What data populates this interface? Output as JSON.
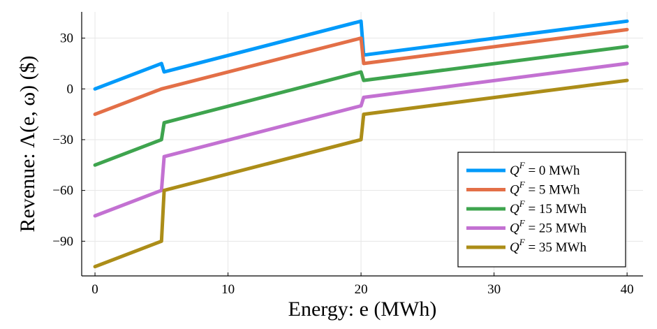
{
  "chart_data": {
    "type": "line",
    "title": "",
    "xlabel": "Energy: e (MWh)",
    "ylabel": "Revenue: Λ(e, ω)  ($)",
    "xlim": [
      -1.0,
      41.2
    ],
    "ylim": [
      -110.5,
      45.5
    ],
    "xticks": [
      0,
      10,
      20,
      30,
      40
    ],
    "yticks": [
      30,
      0,
      -30,
      -60,
      -90
    ],
    "xtick_labels": [
      "0",
      "10",
      "20",
      "30",
      "40"
    ],
    "ytick_labels": [
      "30",
      "0",
      "−30",
      "−60",
      "−90"
    ],
    "grid": true,
    "legend_position": "bottom-right",
    "series": [
      {
        "name": "Q^F = 0 MWh",
        "legend_prefix": "Q",
        "legend_sup": "F",
        "legend_suffix": " =  0  MWh",
        "color": "#009AFA",
        "points": [
          [
            0,
            0
          ],
          [
            5,
            15
          ],
          [
            5.2,
            10
          ],
          [
            20,
            40
          ],
          [
            20.2,
            20
          ],
          [
            40,
            40
          ]
        ]
      },
      {
        "name": "Q^F = 5 MWh",
        "legend_prefix": "Q",
        "legend_sup": "F",
        "legend_suffix": " =  5  MWh",
        "color": "#E36F47",
        "points": [
          [
            0,
            -15
          ],
          [
            5,
            0
          ],
          [
            20,
            30
          ],
          [
            20.2,
            15
          ],
          [
            40,
            35
          ]
        ]
      },
      {
        "name": "Q^F = 15 MWh",
        "legend_prefix": "Q",
        "legend_sup": "F",
        "legend_suffix": " =  15  MWh",
        "color": "#3EA44E",
        "points": [
          [
            0,
            -45
          ],
          [
            5,
            -30
          ],
          [
            5.2,
            -20
          ],
          [
            20,
            10
          ],
          [
            20.2,
            5
          ],
          [
            40,
            25
          ]
        ]
      },
      {
        "name": "Q^F = 25 MWh",
        "legend_prefix": "Q",
        "legend_sup": "F",
        "legend_suffix": " =  25  MWh",
        "color": "#C371D2",
        "points": [
          [
            0,
            -75
          ],
          [
            5,
            -60
          ],
          [
            5.2,
            -40
          ],
          [
            20,
            -10
          ],
          [
            20.2,
            -5
          ],
          [
            40,
            15
          ]
        ]
      },
      {
        "name": "Q^F = 35 MWh",
        "legend_prefix": "Q",
        "legend_sup": "F",
        "legend_suffix": " =  35  MWh",
        "color": "#AC8D18",
        "points": [
          [
            0,
            -105
          ],
          [
            5,
            -90
          ],
          [
            5.2,
            -60
          ],
          [
            20,
            -30
          ],
          [
            20.2,
            -15
          ],
          [
            40,
            5
          ]
        ]
      }
    ]
  }
}
